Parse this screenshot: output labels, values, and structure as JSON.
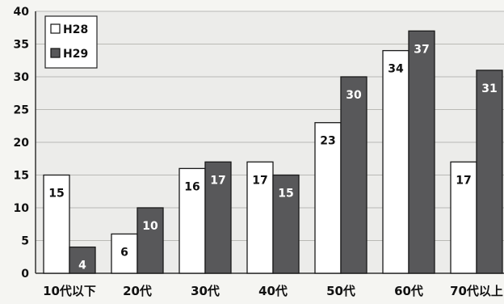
{
  "chart_data": {
    "type": "bar",
    "categories": [
      "10代以下",
      "20代",
      "30代",
      "40代",
      "50代",
      "60代",
      "70代以上"
    ],
    "series": [
      {
        "name": "H28",
        "values": [
          15,
          6,
          16,
          17,
          23,
          34,
          17
        ],
        "color": "#ffffff"
      },
      {
        "name": "H29",
        "values": [
          4,
          10,
          17,
          15,
          30,
          37,
          31
        ],
        "color": "#58585a"
      }
    ],
    "ylim": [
      0,
      40
    ],
    "yticks": [
      0,
      5,
      10,
      15,
      20,
      25,
      30,
      35,
      40
    ],
    "grid": true,
    "legend_position": "top-left",
    "title": "",
    "xlabel": "",
    "ylabel": ""
  }
}
